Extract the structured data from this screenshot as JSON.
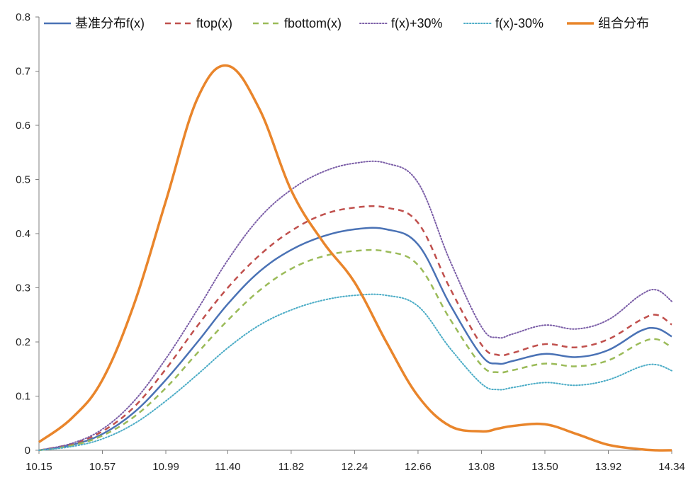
{
  "chart_data": {
    "type": "line",
    "title": "",
    "xlabel": "",
    "ylabel": "",
    "x_ticks": [
      "10.15",
      "10.57",
      "10.99",
      "11.40",
      "11.82",
      "12.24",
      "12.66",
      "13.08",
      "13.50",
      "13.92",
      "14.34"
    ],
    "y_ticks": [
      "0",
      "0.1",
      "0.2",
      "0.3",
      "0.4",
      "0.5",
      "0.6",
      "0.7",
      "0.8"
    ],
    "xlim": [
      10.15,
      14.34
    ],
    "ylim": [
      0,
      0.8
    ],
    "grid": false,
    "legend_position": "top",
    "x": [
      10.15,
      10.37,
      10.57,
      10.78,
      10.99,
      11.2,
      11.4,
      11.61,
      11.82,
      12.03,
      12.24,
      12.45,
      12.66,
      12.87,
      13.08,
      13.19,
      13.29,
      13.5,
      13.71,
      13.92,
      14.13,
      14.24,
      14.34
    ],
    "series": [
      {
        "name": "基准分布f(x)",
        "color": "#4a72b5",
        "style": "solid",
        "width": 2.5,
        "values": [
          0.0,
          0.01,
          0.03,
          0.07,
          0.13,
          0.2,
          0.27,
          0.33,
          0.37,
          0.395,
          0.408,
          0.408,
          0.38,
          0.27,
          0.175,
          0.16,
          0.165,
          0.178,
          0.172,
          0.185,
          0.22,
          0.225,
          0.21
        ]
      },
      {
        "name": "ftop(x)",
        "color": "#c0504d",
        "style": "dashed",
        "width": 2.5,
        "values": [
          0.0,
          0.012,
          0.035,
          0.08,
          0.15,
          0.23,
          0.3,
          0.36,
          0.405,
          0.435,
          0.448,
          0.448,
          0.42,
          0.3,
          0.195,
          0.176,
          0.18,
          0.196,
          0.19,
          0.205,
          0.24,
          0.25,
          0.232
        ]
      },
      {
        "name": "fbottom(x)",
        "color": "#9bbb59",
        "style": "dashed",
        "width": 2.5,
        "values": [
          0.0,
          0.009,
          0.027,
          0.062,
          0.115,
          0.18,
          0.24,
          0.295,
          0.335,
          0.358,
          0.368,
          0.367,
          0.342,
          0.243,
          0.157,
          0.144,
          0.148,
          0.16,
          0.155,
          0.166,
          0.198,
          0.205,
          0.19
        ]
      },
      {
        "name": "f(x)+30%",
        "color": "#7b5ea7",
        "style": "dotted",
        "width": 2,
        "values": [
          0.0,
          0.013,
          0.039,
          0.091,
          0.169,
          0.26,
          0.351,
          0.429,
          0.481,
          0.514,
          0.53,
          0.53,
          0.494,
          0.351,
          0.228,
          0.208,
          0.215,
          0.231,
          0.224,
          0.241,
          0.286,
          0.296,
          0.275
        ]
      },
      {
        "name": "f(x)-30%",
        "color": "#4bacc6",
        "style": "dotted",
        "width": 2,
        "values": [
          0.0,
          0.007,
          0.021,
          0.049,
          0.091,
          0.14,
          0.189,
          0.231,
          0.259,
          0.277,
          0.286,
          0.286,
          0.266,
          0.189,
          0.123,
          0.112,
          0.116,
          0.125,
          0.12,
          0.13,
          0.154,
          0.158,
          0.147
        ]
      },
      {
        "name": "组合分布",
        "color": "#e9852b",
        "style": "solid",
        "width": 3.5,
        "values": [
          0.015,
          0.06,
          0.13,
          0.27,
          0.46,
          0.65,
          0.71,
          0.63,
          0.48,
          0.385,
          0.31,
          0.2,
          0.1,
          0.045,
          0.035,
          0.04,
          0.045,
          0.048,
          0.03,
          0.01,
          0.002,
          0.0,
          0.0
        ]
      }
    ]
  }
}
